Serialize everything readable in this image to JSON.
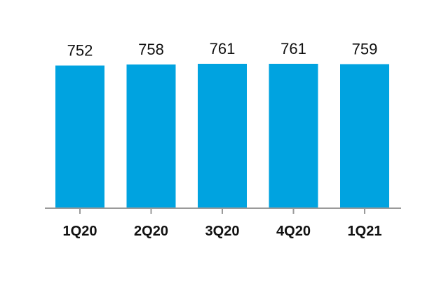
{
  "chart_data": {
    "type": "bar",
    "categories": [
      "1Q20",
      "2Q20",
      "3Q20",
      "4Q20",
      "1Q21"
    ],
    "values": [
      752,
      758,
      761,
      761,
      759
    ],
    "data_labels": [
      "752",
      "758",
      "761",
      "761",
      "759"
    ],
    "title": "",
    "xlabel": "",
    "ylabel": "",
    "ylim": [
      0,
      761
    ],
    "grid": false,
    "legend": "none",
    "bar_color": "#00A3E0"
  }
}
